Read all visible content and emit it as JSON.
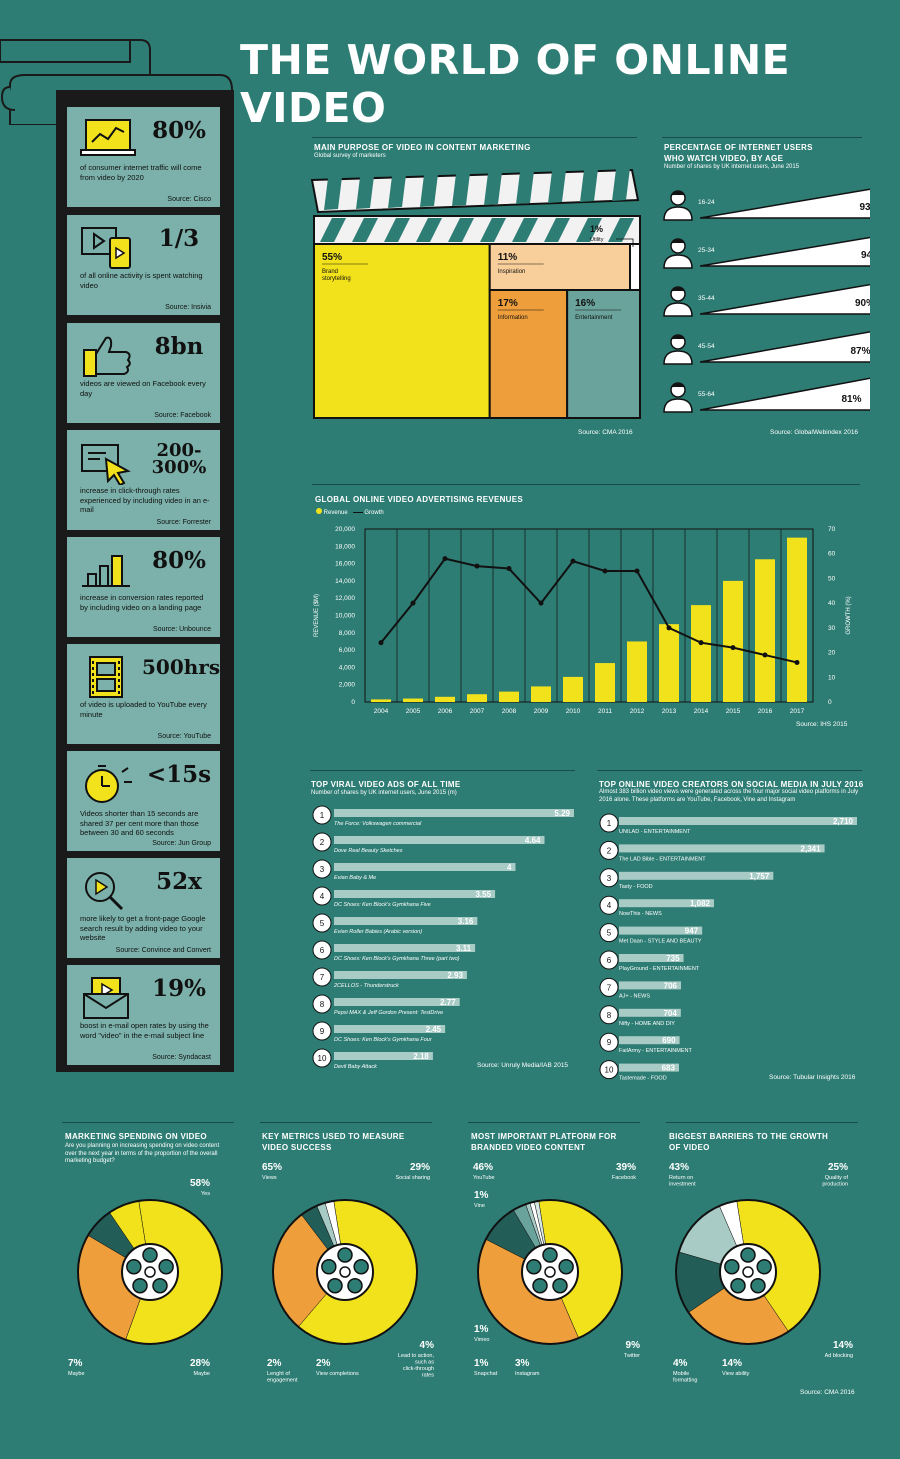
{
  "title": "THE WORLD OF ONLINE VIDEO",
  "stats": [
    {
      "value": "80%",
      "text": "of consumer internet traffic will come from video by 2020",
      "source": "Source: Cisco",
      "icon": "laptop-chart-icon"
    },
    {
      "value": "1/3",
      "text": "of all online activity is spent watching video",
      "source": "Source: Insivia",
      "icon": "screen-phone-icon"
    },
    {
      "value": "8bn",
      "text": "videos are viewed on Facebook every day",
      "source": "Source: Facebook",
      "icon": "thumbs-up-icon"
    },
    {
      "value": "200-300%",
      "text": "increase in click-through rates experienced by including video in an e-mail",
      "source": "Source: Forrester",
      "icon": "cursor-click-icon"
    },
    {
      "value": "80%",
      "text": "increase in conversion rates reported by including video on a landing page",
      "source": "Source: Unbounce",
      "icon": "bar-chart-icon"
    },
    {
      "value": "500hrs",
      "text": "of video is uploaded to YouTube every minute",
      "source": "Source: YouTube",
      "icon": "film-strip-icon"
    },
    {
      "value": "<15s",
      "text": "Videos shorter than 15 seconds are shared 37 per cent more than those between 30 and 60 seconds",
      "source": "Source: Jun Group",
      "icon": "stopwatch-icon"
    },
    {
      "value": "52x",
      "text": "more likely to get a front-page Google search result by adding video to your website",
      "source": "Source: Convince and Convert",
      "icon": "magnifier-play-icon"
    },
    {
      "value": "19%",
      "text": "boost in e-mail open rates by using the word \"video\" in the e-mail subject line",
      "source": "Source: Syndacast",
      "icon": "envelope-play-icon"
    }
  ],
  "chart_data": [
    {
      "type": "treemap",
      "title": "MAIN PURPOSE OF VIDEO IN CONTENT MARKETING",
      "subtitle": "Global survey of marketers",
      "source": "Source: CMA 2016",
      "items": [
        {
          "label": "Brand storytelling",
          "value": 55,
          "display": "55%",
          "color": "#f2e21c"
        },
        {
          "label": "Inspiration",
          "value": 11,
          "display": "11%",
          "color": "#f8cf9b"
        },
        {
          "label": "Information",
          "value": 17,
          "display": "17%",
          "color": "#ef9e3c"
        },
        {
          "label": "Entertainment",
          "value": 16,
          "display": "16%",
          "color": "#6aa39b"
        },
        {
          "label": "Utility",
          "value": 1,
          "display": "1%",
          "color": "#ffffff"
        }
      ]
    },
    {
      "type": "bar",
      "title": "PERCENTAGE OF INTERNET USERS WHO WATCH VIDEO, BY AGE",
      "subtitle": "Number of shares by UK internet users, June 2015",
      "source": "Source: GlobalWebindex 2016",
      "categories": [
        "16-24",
        "25-34",
        "35-44",
        "45-54",
        "55-64"
      ],
      "values": [
        93,
        94,
        90,
        87,
        81
      ],
      "labels": [
        "93%",
        "94%",
        "90%",
        "87%",
        "81%"
      ]
    },
    {
      "type": "bar",
      "title": "GLOBAL ONLINE VIDEO ADVERTISING REVENUES",
      "legend": [
        "Revenue",
        "Growth"
      ],
      "source": "Source: IHS 2015",
      "ylabel": "REVENUE ($M)",
      "y2label": "GROWTH (%)",
      "ylim": [
        0,
        20000
      ],
      "y2lim": [
        0,
        70
      ],
      "yticks": [
        "0",
        "2,000",
        "4,000",
        "6,000",
        "8,000",
        "10,000",
        "12,000",
        "14,000",
        "16,000",
        "18,000",
        "20,000"
      ],
      "y2ticks": [
        "0",
        "10",
        "20",
        "30",
        "40",
        "50",
        "60",
        "70"
      ],
      "categories": [
        "2004",
        "2005",
        "2006",
        "2007",
        "2008",
        "2009",
        "2010",
        "2011",
        "2012",
        "2013",
        "2014",
        "2015",
        "2016",
        "2017"
      ],
      "series": [
        {
          "name": "Revenue",
          "values": [
            300,
            400,
            600,
            900,
            1200,
            1800,
            2900,
            4500,
            7000,
            9000,
            11200,
            14000,
            16500,
            19000
          ]
        },
        {
          "name": "Growth",
          "values": [
            24,
            40,
            58,
            55,
            54,
            40,
            57,
            53,
            53,
            30,
            24,
            22,
            19,
            16
          ]
        }
      ]
    },
    {
      "type": "bar",
      "title": "TOP VIRAL VIDEO ADS OF ALL TIME",
      "subtitle": "Number of shares by UK internet users, June 2015 (m)",
      "source": "Source: Unruly Media/IAB 2015",
      "categories": [
        "The Force: Volkswagen commercial",
        "Dove Real Beauty Sketches",
        "Evian Baby & Me",
        "DC Shoes: Ken Block's Gymkhana Five",
        "Evian Roller Babies (Arabic version)",
        "DC Shoes: Ken Block's Gymkhana Three (part two)",
        "2CELLOS - Thunderstruck",
        "Pepsi MAX & Jeff Gordon Present: TestDrive",
        "DC Shoes: Ken Block's Gymkhana Four",
        "Devil Baby Attack"
      ],
      "values": [
        5.29,
        4.64,
        4,
        3.55,
        3.16,
        3.11,
        2.93,
        2.77,
        2.45,
        2.18
      ],
      "labels": [
        "5.29",
        "4.64",
        "4",
        "3.55",
        "3.16",
        "3.11",
        "2.93",
        "2.77",
        "2.45",
        "2.18"
      ],
      "ranks": [
        "1",
        "2",
        "3",
        "4",
        "5",
        "6",
        "7",
        "8",
        "9",
        "10"
      ]
    },
    {
      "type": "bar",
      "title": "TOP ONLINE VIDEO CREATORS ON SOCIAL MEDIA IN JULY 2016",
      "subtitle": "Almost 383 billion video views were generated across the four major social video platforms in July 2016 alone. These platforms are YouTube, Facebook, Vine and Instagram",
      "source": "Source: Tubular Insights 2016",
      "categories": [
        "UNILAD - ENTERTAINMENT",
        "The LAD Bible - ENTERTAINMENT",
        "Tasty - FOOD",
        "NowThis - NEWS",
        "Met Daan - STYLE AND BEAUTY",
        "PlayGround - ENTERTAINMENT",
        "AJ+ - NEWS",
        "Nifty - HOME AND DIY",
        "FailArmy - ENTERTAINMENT",
        "Tastemade - FOOD"
      ],
      "values": [
        2710,
        2341,
        1757,
        1082,
        947,
        735,
        706,
        704,
        690,
        683
      ],
      "labels": [
        "2,710",
        "2,341",
        "1,757",
        "1,082",
        "947",
        "735",
        "706",
        "704",
        "690",
        "683"
      ],
      "ranks": [
        "1",
        "2",
        "3",
        "4",
        "5",
        "6",
        "7",
        "8",
        "9",
        "10"
      ]
    },
    {
      "type": "pie",
      "title": "MARKETING SPENDING ON VIDEO",
      "subtitle": "Are you planning on increasing spending on video content over the next year in terms of the proportion of the overall marketing budget?",
      "slices": [
        {
          "label": "Yes",
          "value": 58,
          "display": "58%",
          "color": "#f2e21c"
        },
        {
          "label": "Maybe",
          "value": 28,
          "display": "28%",
          "color": "#ef9e3c"
        },
        {
          "label": "Maybe",
          "value": 7,
          "display": "7%",
          "color": "#225d57"
        },
        {
          "label": "",
          "value": 7,
          "display": "",
          "color": "#f2e21c"
        }
      ]
    },
    {
      "type": "pie",
      "title": "KEY METRICS USED TO MEASURE VIDEO SUCCESS",
      "slices": [
        {
          "label": "Views",
          "value": 65,
          "display": "65%",
          "color": "#f2e21c"
        },
        {
          "label": "Social sharing",
          "value": 29,
          "display": "29%",
          "color": "#ef9e3c"
        },
        {
          "label": "Lead to action, such as click-through rates",
          "value": 4,
          "display": "4%",
          "color": "#225d57"
        },
        {
          "label": "View completions",
          "value": 2,
          "display": "2%",
          "color": "#a8cbc5"
        },
        {
          "label": "Lenght of engagement",
          "value": 2,
          "display": "2%",
          "color": "#ffffff"
        }
      ]
    },
    {
      "type": "pie",
      "title": "MOST IMPORTANT PLATFORM FOR BRANDED VIDEO CONTENT",
      "slices": [
        {
          "label": "YouTube",
          "value": 46,
          "display": "46%",
          "color": "#f2e21c"
        },
        {
          "label": "Facebook",
          "value": 39,
          "display": "39%",
          "color": "#ef9e3c"
        },
        {
          "label": "Twitter",
          "value": 9,
          "display": "9%",
          "color": "#225d57"
        },
        {
          "label": "Instagram",
          "value": 3,
          "display": "3%",
          "color": "#6aa39b"
        },
        {
          "label": "Snapchat",
          "value": 1,
          "display": "1%",
          "color": "#a8cbc5"
        },
        {
          "label": "Vimeo",
          "value": 1,
          "display": "1%",
          "color": "#ffffff"
        },
        {
          "label": "Vine",
          "value": 1,
          "display": "1%",
          "color": "#d7e8e5"
        }
      ]
    },
    {
      "type": "pie",
      "title": "BIGGEST BARRIERS TO THE GROWTH OF VIDEO",
      "source": "Source: CMA 2016",
      "slices": [
        {
          "label": "Return on investment",
          "value": 43,
          "display": "43%",
          "color": "#f2e21c"
        },
        {
          "label": "Quality of production",
          "value": 25,
          "display": "25%",
          "color": "#ef9e3c"
        },
        {
          "label": "Ad blocking",
          "value": 14,
          "display": "14%",
          "color": "#225d57"
        },
        {
          "label": "View ability",
          "value": 14,
          "display": "14%",
          "color": "#a8cbc5"
        },
        {
          "label": "Mobile formatting",
          "value": 4,
          "display": "4%",
          "color": "#ffffff"
        }
      ]
    }
  ]
}
